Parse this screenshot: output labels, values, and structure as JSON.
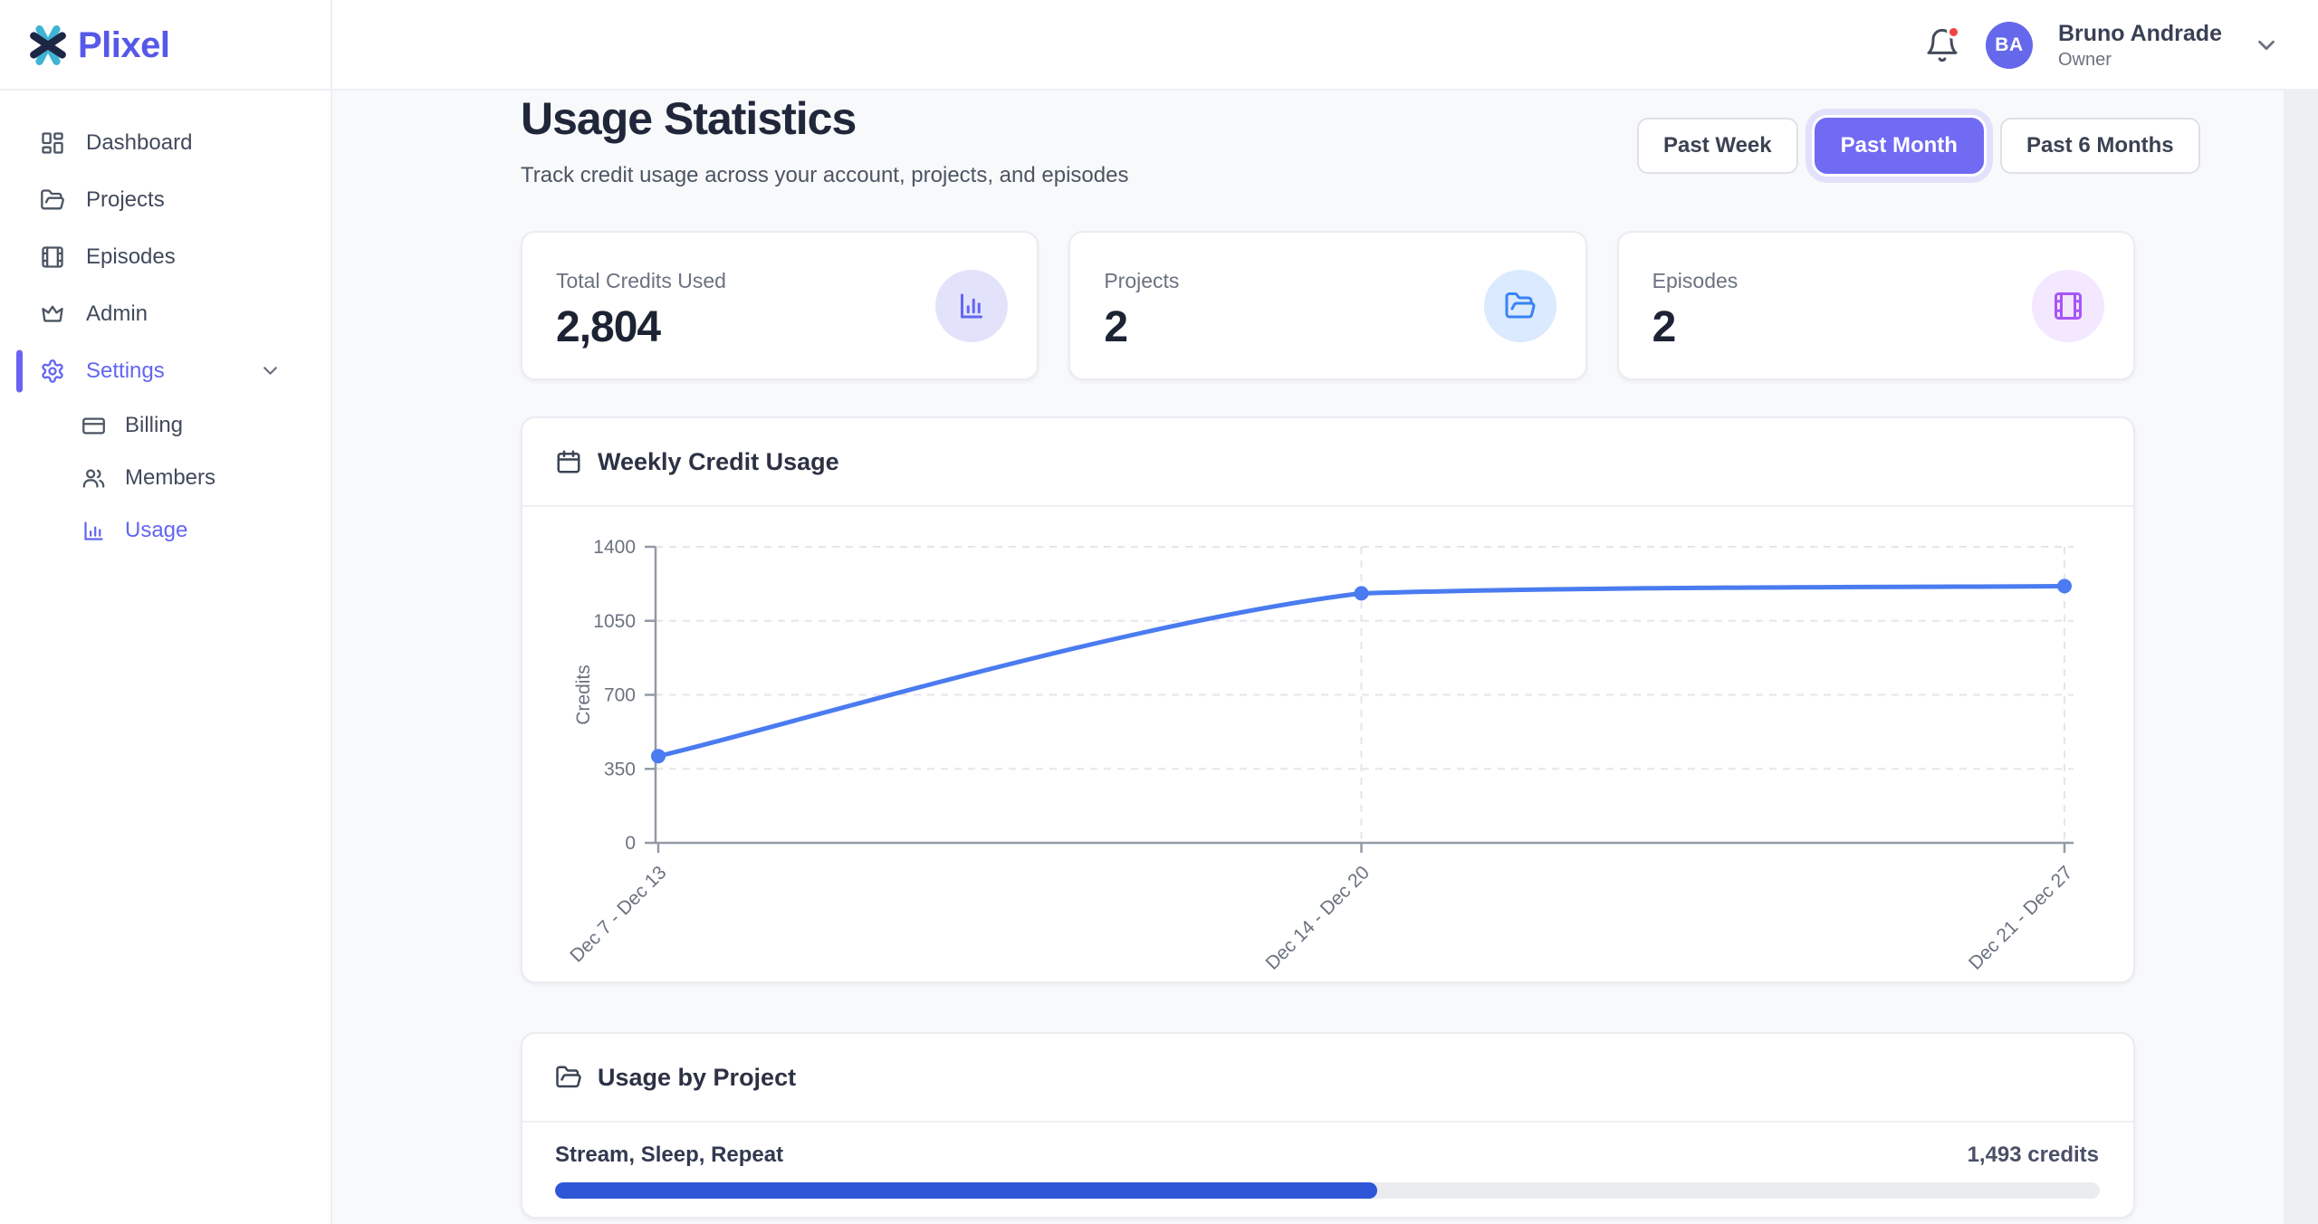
{
  "brand": {
    "name": "Plixel",
    "logo_icon": "plixel-x-mark",
    "accent": "#5658e8"
  },
  "header": {
    "notification_bell": {
      "icon": "bell-icon",
      "has_unread": true,
      "unread_dot_color": "#ef4444"
    },
    "user": {
      "initials": "BA",
      "name": "Bruno Andrade",
      "role": "Owner",
      "avatar_color": "#6568ea"
    }
  },
  "sidebar": {
    "active_color": "#6366f1",
    "items": [
      {
        "label": "Dashboard",
        "icon": "dashboard-icon",
        "active": false
      },
      {
        "label": "Projects",
        "icon": "folder-open-icon",
        "active": false
      },
      {
        "label": "Episodes",
        "icon": "film-icon",
        "active": false
      },
      {
        "label": "Admin",
        "icon": "crown-icon",
        "active": false
      },
      {
        "label": "Settings",
        "icon": "gear-icon",
        "active": true,
        "expanded": true
      }
    ],
    "settings_children": [
      {
        "label": "Billing",
        "icon": "credit-card-icon",
        "active": false
      },
      {
        "label": "Members",
        "icon": "users-icon",
        "active": false
      },
      {
        "label": "Usage",
        "icon": "bar-chart-icon",
        "active": true
      }
    ]
  },
  "page": {
    "title": "Usage Statistics",
    "subtitle": "Track credit usage across your account, projects, and episodes"
  },
  "range_buttons": [
    {
      "label": "Past Week",
      "selected": false
    },
    {
      "label": "Past Month",
      "selected": true
    },
    {
      "label": "Past 6 Months",
      "selected": false
    }
  ],
  "stats": [
    {
      "label": "Total Credits Used",
      "value": "2,804",
      "icon": "bar-chart-icon",
      "icon_color": "#6366f1",
      "icon_bg": "#e2e3fb"
    },
    {
      "label": "Projects",
      "value": "2",
      "icon": "folder-open-icon",
      "icon_color": "#3b82f6",
      "icon_bg": "#dbeafe"
    },
    {
      "label": "Episodes",
      "value": "2",
      "icon": "film-icon",
      "icon_color": "#a855f7",
      "icon_bg": "#f3e8ff"
    }
  ],
  "weekly_section": {
    "title": "Weekly Credit Usage",
    "icon": "calendar-icon"
  },
  "project_section": {
    "title": "Usage by Project",
    "icon": "folder-open-icon",
    "projects": [
      {
        "name": "Stream, Sleep, Repeat",
        "credits_label": "1,493 credits",
        "percent": 53.2,
        "bar_color": "#3056d8"
      }
    ]
  },
  "chart_data": {
    "type": "line",
    "title": "Weekly Credit Usage",
    "x": [
      "Dec 7 - Dec 13",
      "Dec 14 - Dec 20",
      "Dec 21 - Dec 27"
    ],
    "series": [
      {
        "name": "Credits",
        "values": [
          410,
          1180,
          1214
        ]
      }
    ],
    "ylabel": "Credits",
    "xlabel": "",
    "yticks": [
      0,
      350,
      700,
      1050,
      1400
    ],
    "ylim": [
      0,
      1400
    ],
    "grid": true,
    "legend": false,
    "line_color": "#4a7bf0",
    "point_style": "circle"
  }
}
